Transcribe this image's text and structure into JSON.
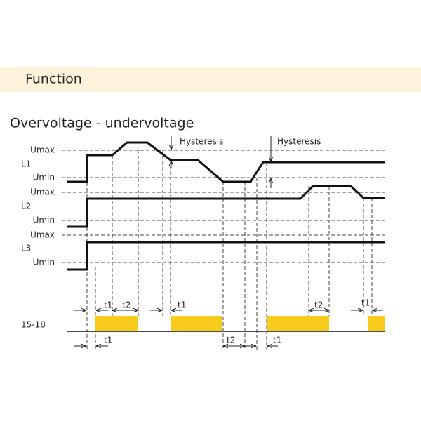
{
  "header": {
    "title": "Function"
  },
  "diagram": {
    "title": "Overvoltage - undervoltage",
    "channels": [
      {
        "label": "L1",
        "upper": "Umax",
        "lower": "Umin"
      },
      {
        "label": "L2",
        "upper": "Umax",
        "lower": "Umin"
      },
      {
        "label": "L3",
        "upper": "Umax",
        "lower": "Umin"
      }
    ],
    "hysteresis": [
      "Hysteresis",
      "Hysteresis"
    ],
    "output": "15-18",
    "upper_timings": [
      "t1",
      "t2",
      "t1",
      "t2",
      "t1"
    ],
    "lower_timings": [
      "t1",
      "t2",
      "t1"
    ]
  }
}
